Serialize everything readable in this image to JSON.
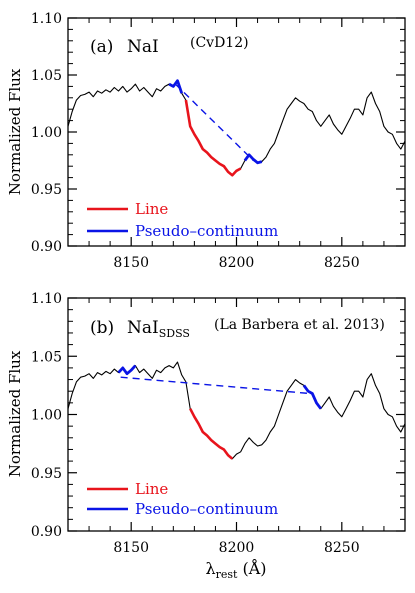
{
  "figure": {
    "xlabel_main": "λ",
    "xlabel_sub": "rest",
    "xlabel_unit": "(Å)"
  },
  "chart_data": [
    {
      "type": "line",
      "panel_label": "(a)",
      "title_main": "NaI",
      "title_sub": "",
      "source": "(CvD12)",
      "xlabel": "",
      "ylabel": "Normalized Flux",
      "xlim": [
        8120,
        8280
      ],
      "ylim": [
        0.9,
        1.1
      ],
      "xticks": [
        8150,
        8200,
        8250
      ],
      "xtick_labels": [
        "8150",
        "8200",
        "8250"
      ],
      "yticks": [
        0.9,
        0.95,
        1.0,
        1.05,
        1.1
      ],
      "ytick_labels": [
        "0.90",
        "0.95",
        "1.00",
        "1.05",
        "1.10"
      ],
      "legend": {
        "position": "bottom-left",
        "entries": [
          {
            "name": "Line",
            "color": "#e8141c"
          },
          {
            "name": "Pseudo–continuum",
            "color": "#0a14e6"
          }
        ]
      },
      "line_range": [
        8175,
        8202
      ],
      "pseudo_continuum_ranges": [
        [
          8168,
          8174
        ],
        [
          8204,
          8212
        ]
      ],
      "pseudo_continuum_fit": [
        [
          8171,
          1.042
        ],
        [
          8208,
          0.975
        ]
      ],
      "series": [
        {
          "color": "#000000",
          "x": [
            8120,
            8122,
            8124,
            8126,
            8128,
            8130,
            8132,
            8134,
            8136,
            8138,
            8140,
            8142,
            8144,
            8146,
            8148,
            8150,
            8152,
            8154,
            8156,
            8158,
            8160,
            8162,
            8164,
            8166,
            8168,
            8170,
            8172,
            8174,
            8176,
            8178,
            8180,
            8182,
            8184,
            8186,
            8188,
            8190,
            8192,
            8194,
            8196,
            8198,
            8200,
            8202,
            8204,
            8206,
            8208,
            8210,
            8212,
            8214,
            8216,
            8218,
            8220,
            8222,
            8224,
            8226,
            8228,
            8230,
            8232,
            8234,
            8236,
            8238,
            8240,
            8242,
            8244,
            8246,
            8248,
            8250,
            8252,
            8254,
            8256,
            8258,
            8260,
            8262,
            8264,
            8266,
            8268,
            8270,
            8272,
            8274,
            8276,
            8278,
            8280
          ],
          "y": [
            1.005,
            1.018,
            1.028,
            1.032,
            1.033,
            1.035,
            1.031,
            1.036,
            1.034,
            1.037,
            1.035,
            1.039,
            1.036,
            1.04,
            1.035,
            1.038,
            1.042,
            1.036,
            1.039,
            1.035,
            1.031,
            1.038,
            1.036,
            1.04,
            1.042,
            1.04,
            1.045,
            1.034,
            1.028,
            1.005,
            0.998,
            0.992,
            0.985,
            0.982,
            0.978,
            0.975,
            0.972,
            0.97,
            0.965,
            0.962,
            0.966,
            0.968,
            0.975,
            0.98,
            0.976,
            0.973,
            0.974,
            0.978,
            0.985,
            0.99,
            1.0,
            1.01,
            1.02,
            1.025,
            1.03,
            1.027,
            1.025,
            1.02,
            1.018,
            1.01,
            1.005,
            1.01,
            1.015,
            1.007,
            1.002,
            0.998,
            1.005,
            1.012,
            1.02,
            1.02,
            1.015,
            1.03,
            1.035,
            1.025,
            1.018,
            1.005,
            1.0,
            0.998,
            0.99,
            0.985,
            0.992
          ]
        }
      ]
    },
    {
      "type": "line",
      "panel_label": "(b)",
      "title_main": "NaI",
      "title_sub": "SDSS",
      "source": "(La Barbera et al. 2013)",
      "xlabel": "",
      "ylabel": "Normalized Flux",
      "xlim": [
        8120,
        8280
      ],
      "ylim": [
        0.9,
        1.1
      ],
      "xticks": [
        8150,
        8200,
        8250
      ],
      "xtick_labels": [
        "8150",
        "8200",
        "8250"
      ],
      "yticks": [
        0.9,
        0.95,
        1.0,
        1.05,
        1.1
      ],
      "ytick_labels": [
        "0.90",
        "0.95",
        "1.00",
        "1.05",
        "1.10"
      ],
      "legend": {
        "position": "bottom-left",
        "entries": [
          {
            "name": "Line",
            "color": "#e8141c"
          },
          {
            "name": "Pseudo–continuum",
            "color": "#0a14e6"
          }
        ]
      },
      "line_range": [
        8177,
        8198
      ],
      "pseudo_continuum_ranges": [
        [
          8143,
          8153
        ],
        [
          8231,
          8240
        ]
      ],
      "pseudo_continuum_fit": [
        [
          8145,
          1.032
        ],
        [
          8235,
          1.018
        ]
      ],
      "series": [
        {
          "color": "#000000",
          "x": [
            8120,
            8122,
            8124,
            8126,
            8128,
            8130,
            8132,
            8134,
            8136,
            8138,
            8140,
            8142,
            8144,
            8146,
            8148,
            8150,
            8152,
            8154,
            8156,
            8158,
            8160,
            8162,
            8164,
            8166,
            8168,
            8170,
            8172,
            8174,
            8176,
            8178,
            8180,
            8182,
            8184,
            8186,
            8188,
            8190,
            8192,
            8194,
            8196,
            8198,
            8200,
            8202,
            8204,
            8206,
            8208,
            8210,
            8212,
            8214,
            8216,
            8218,
            8220,
            8222,
            8224,
            8226,
            8228,
            8230,
            8232,
            8234,
            8236,
            8238,
            8240,
            8242,
            8244,
            8246,
            8248,
            8250,
            8252,
            8254,
            8256,
            8258,
            8260,
            8262,
            8264,
            8266,
            8268,
            8270,
            8272,
            8274,
            8276,
            8278,
            8280
          ],
          "y": [
            1.005,
            1.018,
            1.028,
            1.032,
            1.033,
            1.035,
            1.031,
            1.036,
            1.034,
            1.037,
            1.035,
            1.039,
            1.036,
            1.04,
            1.035,
            1.038,
            1.042,
            1.036,
            1.039,
            1.035,
            1.031,
            1.038,
            1.036,
            1.04,
            1.042,
            1.04,
            1.045,
            1.034,
            1.028,
            1.005,
            0.998,
            0.992,
            0.985,
            0.982,
            0.978,
            0.975,
            0.972,
            0.97,
            0.965,
            0.962,
            0.966,
            0.968,
            0.975,
            0.98,
            0.976,
            0.973,
            0.974,
            0.978,
            0.985,
            0.99,
            1.0,
            1.01,
            1.02,
            1.025,
            1.03,
            1.027,
            1.025,
            1.02,
            1.018,
            1.01,
            1.005,
            1.01,
            1.015,
            1.007,
            1.002,
            0.998,
            1.005,
            1.012,
            1.02,
            1.02,
            1.015,
            1.03,
            1.035,
            1.025,
            1.018,
            1.005,
            1.0,
            0.998,
            0.99,
            0.985,
            0.992
          ]
        }
      ]
    }
  ]
}
